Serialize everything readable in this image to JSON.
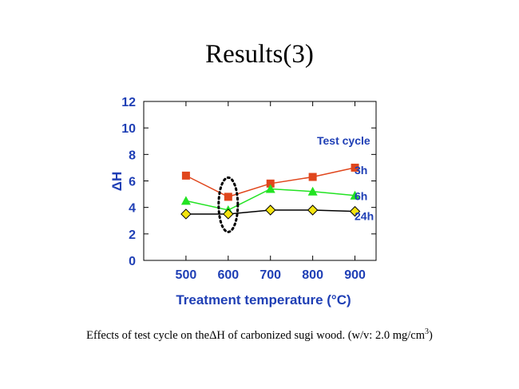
{
  "slide": {
    "title": "Results(3)",
    "caption_prefix": "Effects of test cycle on the",
    "caption_delta": "ΔH",
    "caption_suffix": " of carbonized sugi wood. (w/v: 2.0 mg/cm",
    "caption_sup": "3",
    "caption_end": ")"
  },
  "colors": {
    "axis_text": "#1f3fb5",
    "series_3h": "#e0461c",
    "series_6h": "#22e322",
    "series_24h_fill": "#f5e40f",
    "series_24h_line": "#000000"
  },
  "chart_data": {
    "type": "line",
    "x": [
      500,
      600,
      700,
      800,
      900
    ],
    "xlabel": "Treatment temperature (°C)",
    "ylabel": "ΔH",
    "xlim": [
      400,
      950
    ],
    "ylim": [
      0,
      12
    ],
    "yticks": [
      0,
      2,
      4,
      6,
      8,
      10,
      12
    ],
    "xticks": [
      500,
      600,
      700,
      800,
      900
    ],
    "legend_title": "Test cycle",
    "series": [
      {
        "name": "3h",
        "marker": "square",
        "values": [
          6.4,
          4.8,
          5.8,
          6.3,
          7.0
        ]
      },
      {
        "name": "6h",
        "marker": "triangle",
        "values": [
          4.5,
          3.8,
          5.4,
          5.2,
          4.9
        ]
      },
      {
        "name": "24h",
        "marker": "diamond",
        "values": [
          3.5,
          3.5,
          3.8,
          3.8,
          3.7
        ]
      }
    ],
    "annotation": {
      "type": "dotted-ellipse",
      "x": 600
    }
  }
}
